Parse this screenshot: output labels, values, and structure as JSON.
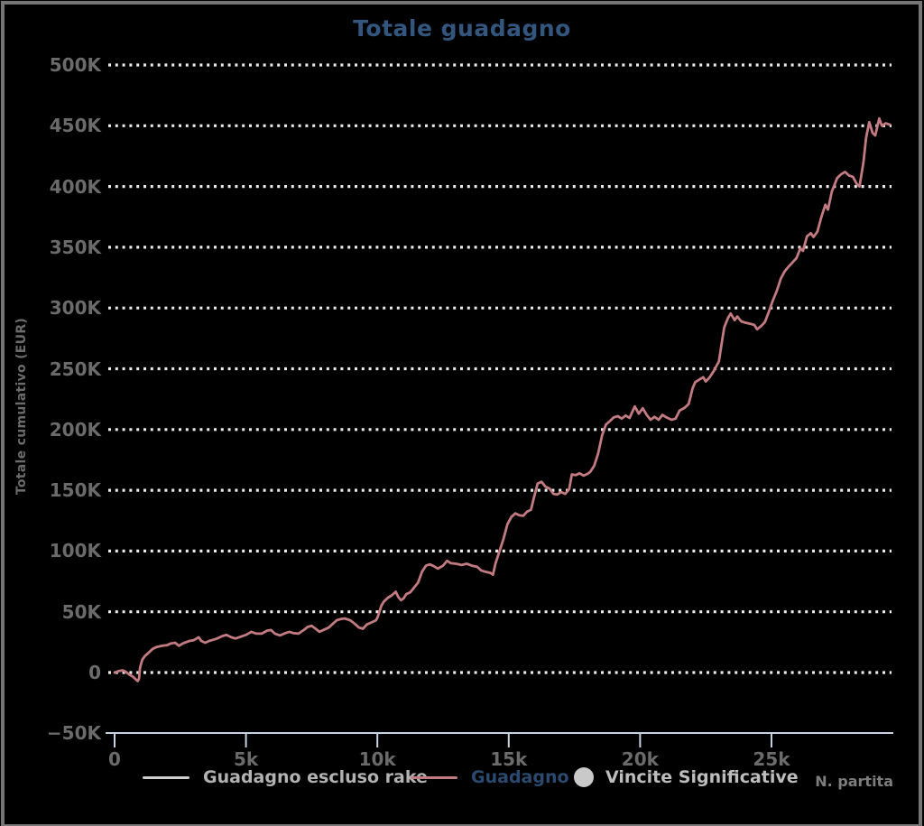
{
  "window": {
    "background": "#000000",
    "border_color": "#757575"
  },
  "colors": {
    "title_blue": "#33567e",
    "legend_active_blue": "#2b4a6f",
    "series_rose": "#c27b80",
    "gridline": "#ebebeb",
    "axis_blue": "#c7d2e2",
    "tick_gray": "#6b6b6b",
    "legend_gray_text": "#b2b2b2",
    "legend_gray_swatch": "#d0d0d0",
    "axis_title_gray": "#7d7d7d"
  },
  "chart_data": {
    "type": "line",
    "title": "Totale guadagno",
    "xlabel": "N. partita",
    "ylabel": "Totale cumulativo (EUR)",
    "xlim": [
      0,
      29500
    ],
    "ylim": [
      -50000,
      500000
    ],
    "grid": "horizontal-dotted",
    "legend_position": "bottom",
    "x_ticks": {
      "values": [
        0,
        5000,
        10000,
        15000,
        20000,
        25000
      ],
      "labels": [
        "0",
        "5k",
        "10k",
        "15k",
        "20k",
        "25k"
      ]
    },
    "y_ticks": {
      "values": [
        500000,
        450000,
        400000,
        350000,
        300000,
        250000,
        200000,
        150000,
        100000,
        50000,
        0,
        -50000
      ],
      "labels": [
        "500K",
        "450K",
        "400K",
        "350K",
        "300K",
        "250K",
        "200K",
        "150K",
        "100K",
        "50K",
        "0",
        "−50K"
      ]
    },
    "gridline_values": [
      500000,
      450000,
      400000,
      350000,
      300000,
      250000,
      200000,
      150000,
      100000,
      50000,
      0
    ],
    "legend": [
      {
        "label": "Guadagno escluso rake",
        "swatch": "line",
        "swatch_color": "#d0d0d0",
        "text_color": "#b2b2b2"
      },
      {
        "label": "Guadagno",
        "swatch": "line",
        "swatch_color": "#c27b80",
        "text_color": "#2b4a6f"
      },
      {
        "label": "Vincite Significative",
        "swatch": "circle",
        "swatch_color": "#c9c9c9",
        "text_color": "#bdbdbd"
      }
    ],
    "series": [
      {
        "name": "Guadagno",
        "color": "#c27b80",
        "x_unit": "partite",
        "y_unit": "EUR",
        "points": [
          [
            0,
            0
          ],
          [
            150,
            1200
          ],
          [
            300,
            1800
          ],
          [
            420,
            800
          ],
          [
            550,
            -1500
          ],
          [
            700,
            -3500
          ],
          [
            800,
            -5500
          ],
          [
            880,
            -7000
          ],
          [
            930,
            -5000
          ],
          [
            970,
            4000
          ],
          [
            1050,
            10500
          ],
          [
            1150,
            13500
          ],
          [
            1300,
            16500
          ],
          [
            1450,
            19500
          ],
          [
            1600,
            21000
          ],
          [
            1800,
            22000
          ],
          [
            2000,
            22500
          ],
          [
            2150,
            24000
          ],
          [
            2300,
            24500
          ],
          [
            2450,
            22000
          ],
          [
            2600,
            24000
          ],
          [
            2850,
            26000
          ],
          [
            3000,
            26500
          ],
          [
            3200,
            29000
          ],
          [
            3300,
            26000
          ],
          [
            3450,
            24500
          ],
          [
            3600,
            26000
          ],
          [
            3750,
            27000
          ],
          [
            3900,
            28000
          ],
          [
            4100,
            30000
          ],
          [
            4250,
            31000
          ],
          [
            4450,
            29000
          ],
          [
            4600,
            28000
          ],
          [
            4800,
            29500
          ],
          [
            5000,
            31000
          ],
          [
            5200,
            33500
          ],
          [
            5400,
            32000
          ],
          [
            5600,
            32000
          ],
          [
            5800,
            34500
          ],
          [
            5950,
            35000
          ],
          [
            6100,
            32000
          ],
          [
            6300,
            30500
          ],
          [
            6500,
            32500
          ],
          [
            6650,
            33500
          ],
          [
            6800,
            32500
          ],
          [
            7000,
            32000
          ],
          [
            7200,
            35000
          ],
          [
            7350,
            37500
          ],
          [
            7500,
            38500
          ],
          [
            7650,
            36000
          ],
          [
            7800,
            33500
          ],
          [
            8000,
            35500
          ],
          [
            8150,
            37000
          ],
          [
            8300,
            40000
          ],
          [
            8450,
            43000
          ],
          [
            8600,
            44000
          ],
          [
            8750,
            44500
          ],
          [
            8900,
            43500
          ],
          [
            9000,
            42500
          ],
          [
            9150,
            40000
          ],
          [
            9300,
            37000
          ],
          [
            9450,
            36000
          ],
          [
            9600,
            39500
          ],
          [
            9800,
            41500
          ],
          [
            9950,
            43000
          ],
          [
            10000,
            45000
          ],
          [
            10080,
            50000
          ],
          [
            10150,
            55000
          ],
          [
            10250,
            58500
          ],
          [
            10400,
            61500
          ],
          [
            10550,
            63500
          ],
          [
            10700,
            66500
          ],
          [
            10800,
            62000
          ],
          [
            10900,
            59500
          ],
          [
            11000,
            61000
          ],
          [
            11100,
            64500
          ],
          [
            11250,
            66000
          ],
          [
            11400,
            70000
          ],
          [
            11550,
            74000
          ],
          [
            11700,
            83000
          ],
          [
            11850,
            88000
          ],
          [
            12000,
            89000
          ],
          [
            12150,
            87500
          ],
          [
            12300,
            85500
          ],
          [
            12500,
            88000
          ],
          [
            12650,
            92000
          ],
          [
            12800,
            90000
          ],
          [
            13000,
            89500
          ],
          [
            13200,
            88500
          ],
          [
            13400,
            89500
          ],
          [
            13600,
            88000
          ],
          [
            13800,
            87000
          ],
          [
            13950,
            84000
          ],
          [
            14100,
            83000
          ],
          [
            14300,
            82000
          ],
          [
            14400,
            80500
          ],
          [
            14500,
            90000
          ],
          [
            14650,
            100000
          ],
          [
            14800,
            110000
          ],
          [
            14950,
            122000
          ],
          [
            15100,
            128000
          ],
          [
            15250,
            131000
          ],
          [
            15400,
            129500
          ],
          [
            15550,
            129000
          ],
          [
            15700,
            132500
          ],
          [
            15850,
            134000
          ],
          [
            15950,
            143000
          ],
          [
            16100,
            155500
          ],
          [
            16250,
            157000
          ],
          [
            16400,
            153000
          ],
          [
            16550,
            151500
          ],
          [
            16700,
            147000
          ],
          [
            16850,
            146500
          ],
          [
            17000,
            148500
          ],
          [
            17150,
            147000
          ],
          [
            17300,
            151000
          ],
          [
            17400,
            163000
          ],
          [
            17550,
            162500
          ],
          [
            17700,
            164000
          ],
          [
            17850,
            162000
          ],
          [
            18000,
            163500
          ],
          [
            18100,
            165000
          ],
          [
            18250,
            170000
          ],
          [
            18400,
            180000
          ],
          [
            18550,
            195000
          ],
          [
            18700,
            204000
          ],
          [
            18850,
            207000
          ],
          [
            19000,
            210000
          ],
          [
            19150,
            211000
          ],
          [
            19300,
            209000
          ],
          [
            19450,
            211500
          ],
          [
            19600,
            209500
          ],
          [
            19800,
            219000
          ],
          [
            19950,
            213000
          ],
          [
            20100,
            217500
          ],
          [
            20250,
            212000
          ],
          [
            20400,
            208000
          ],
          [
            20550,
            210500
          ],
          [
            20700,
            208000
          ],
          [
            20850,
            212000
          ],
          [
            21000,
            210000
          ],
          [
            21200,
            208000
          ],
          [
            21350,
            209000
          ],
          [
            21500,
            215500
          ],
          [
            21700,
            218000
          ],
          [
            21850,
            221000
          ],
          [
            22000,
            234000
          ],
          [
            22100,
            239000
          ],
          [
            22250,
            241000
          ],
          [
            22400,
            243000
          ],
          [
            22500,
            239500
          ],
          [
            22650,
            243000
          ],
          [
            22800,
            248000
          ],
          [
            23000,
            256000
          ],
          [
            23100,
            270000
          ],
          [
            23200,
            284000
          ],
          [
            23350,
            292000
          ],
          [
            23450,
            295500
          ],
          [
            23600,
            290000
          ],
          [
            23700,
            293000
          ],
          [
            23850,
            289000
          ],
          [
            24000,
            288000
          ],
          [
            24200,
            287000
          ],
          [
            24350,
            286000
          ],
          [
            24450,
            282500
          ],
          [
            24600,
            285000
          ],
          [
            24750,
            288500
          ],
          [
            24900,
            297000
          ],
          [
            25050,
            306000
          ],
          [
            25200,
            314000
          ],
          [
            25350,
            324000
          ],
          [
            25500,
            330000
          ],
          [
            25650,
            334000
          ],
          [
            25800,
            337500
          ],
          [
            25950,
            341000
          ],
          [
            26100,
            349000
          ],
          [
            26200,
            347000
          ],
          [
            26350,
            359000
          ],
          [
            26500,
            361500
          ],
          [
            26600,
            358500
          ],
          [
            26750,
            363000
          ],
          [
            26900,
            375000
          ],
          [
            27050,
            385000
          ],
          [
            27150,
            381000
          ],
          [
            27300,
            396000
          ],
          [
            27500,
            407000
          ],
          [
            27650,
            410000
          ],
          [
            27800,
            412000
          ],
          [
            27950,
            409000
          ],
          [
            28100,
            408000
          ],
          [
            28250,
            402000
          ],
          [
            28350,
            400000
          ],
          [
            28500,
            420000
          ],
          [
            28600,
            440000
          ],
          [
            28720,
            453000
          ],
          [
            28850,
            444000
          ],
          [
            28950,
            442000
          ],
          [
            29100,
            456000
          ],
          [
            29200,
            450000
          ],
          [
            29350,
            452000
          ],
          [
            29500,
            451000
          ]
        ]
      }
    ]
  }
}
